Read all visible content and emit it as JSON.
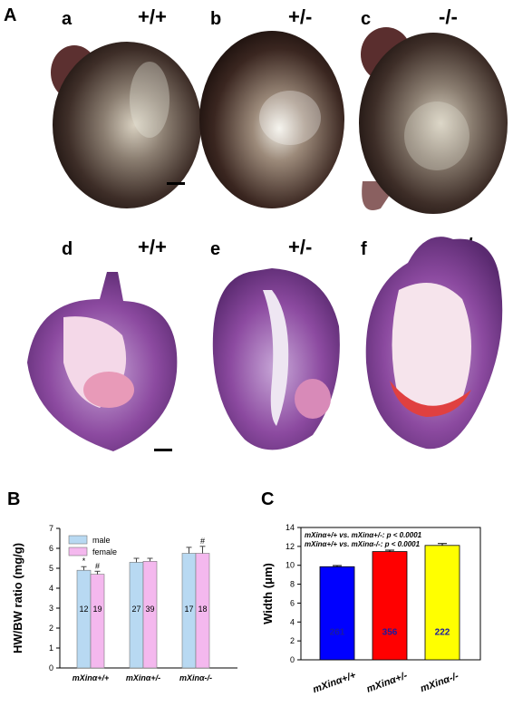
{
  "panelA": {
    "letter": "A",
    "photos": [
      {
        "sub": "a",
        "genotype": "+/+"
      },
      {
        "sub": "b",
        "genotype": "+/-"
      },
      {
        "sub": "c",
        "genotype": "-/-"
      }
    ],
    "sections": [
      {
        "sub": "d",
        "genotype": "+/+"
      },
      {
        "sub": "e",
        "genotype": "+/-"
      },
      {
        "sub": "f",
        "genotype": "-/-"
      }
    ]
  },
  "chart_data": [
    {
      "panel": "B",
      "type": "bar",
      "ylabel": "HW/BW ratio (mg/g)",
      "ylim": [
        0,
        7
      ],
      "yticks": [
        "0",
        "1",
        "2",
        "3",
        "4",
        "5",
        "6",
        "7"
      ],
      "categories": [
        "mXinα+/+",
        "mXinα+/-",
        "mXinα-/-"
      ],
      "legend_position": "top-left",
      "series": [
        {
          "name": "male",
          "color": "#b8d9f2",
          "values": [
            4.9,
            5.3,
            5.75
          ],
          "errors": [
            0.18,
            0.2,
            0.3
          ],
          "n": [
            "12",
            "27",
            "17"
          ],
          "marks": [
            "*",
            "",
            ""
          ]
        },
        {
          "name": "female",
          "color": "#f4b8ee",
          "values": [
            4.7,
            5.35,
            5.75
          ],
          "errors": [
            0.15,
            0.15,
            0.35
          ],
          "n": [
            "19",
            "39",
            "18"
          ],
          "marks": [
            "#",
            "",
            "#"
          ]
        }
      ]
    },
    {
      "panel": "C",
      "type": "bar",
      "ylabel": "Width (μm)",
      "ylim": [
        0,
        14
      ],
      "yticks": [
        "0",
        "2",
        "4",
        "6",
        "8",
        "10",
        "12",
        "14"
      ],
      "categories": [
        "mXinα+/+",
        "mXinα+/-",
        "mXinα-/-"
      ],
      "colors": [
        "#0000ff",
        "#ff0000",
        "#ffff00"
      ],
      "values": [
        9.85,
        11.45,
        12.1
      ],
      "errors": [
        0.12,
        0.15,
        0.2
      ],
      "n": [
        "261",
        "356",
        "222"
      ],
      "annotations": [
        "mXinα+/+ vs. mXinα+/-: p < 0.0001",
        "mXinα+/+ vs. mXinα-/-: p < 0.0001"
      ]
    }
  ],
  "colors": {
    "male": "#b8d9f2",
    "female": "#f4b8ee",
    "tissue_purple": "#7a3c8c",
    "heart_dark": "#2a1a16"
  }
}
